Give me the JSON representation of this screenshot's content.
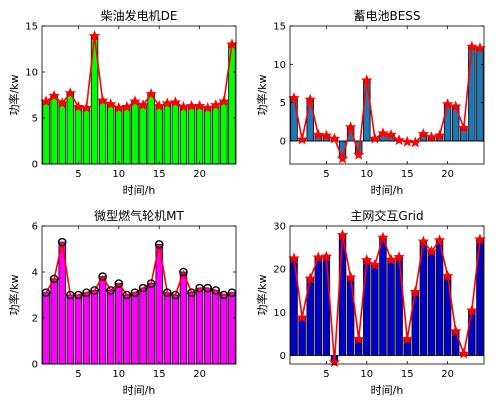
{
  "colors": {
    "series_line": "#ff0000",
    "bar_edge": "#000000"
  },
  "chart_data": [
    {
      "type": "bar",
      "title": "柴油发电机DE",
      "xlabel": "时间/h",
      "ylabel": "功率/kw",
      "xlim": [
        0.5,
        24.5
      ],
      "ylim": [
        0,
        15
      ],
      "xticks": [
        5,
        10,
        15,
        20
      ],
      "yticks": [
        0,
        5,
        10,
        15
      ],
      "bar_color": "#00ff00",
      "marker": "star",
      "x": [
        1,
        2,
        3,
        4,
        5,
        6,
        7,
        8,
        9,
        10,
        11,
        12,
        13,
        14,
        15,
        16,
        17,
        18,
        19,
        20,
        21,
        22,
        23,
        24
      ],
      "values": [
        6.8,
        7.4,
        6.6,
        7.7,
        6.2,
        6.1,
        13.9,
        6.9,
        6.5,
        6.1,
        6.2,
        6.8,
        6.4,
        7.6,
        6.3,
        6.6,
        6.7,
        6.2,
        6.3,
        6.3,
        6.1,
        6.4,
        6.8,
        13.0
      ]
    },
    {
      "type": "bar",
      "title": "蓄电池BESS",
      "xlabel": "时间/h",
      "ylabel": "功率/kw",
      "xlim": [
        0.5,
        24.5
      ],
      "ylim": [
        -3,
        15
      ],
      "xticks": [
        5,
        10,
        15,
        20
      ],
      "yticks": [
        0,
        5,
        10,
        15
      ],
      "bar_color": "#1f77b4",
      "marker": "star",
      "x": [
        1,
        2,
        3,
        4,
        5,
        6,
        7,
        8,
        9,
        10,
        11,
        12,
        13,
        14,
        15,
        16,
        17,
        18,
        19,
        20,
        21,
        22,
        23,
        24
      ],
      "values": [
        5.6,
        0.2,
        5.4,
        0.8,
        0.7,
        0.3,
        -2.3,
        1.8,
        -1.8,
        7.9,
        0.3,
        1.0,
        0.8,
        0.1,
        -0.1,
        -0.2,
        0.9,
        0.5,
        0.7,
        4.8,
        4.5,
        1.7,
        12.3,
        12.1
      ]
    },
    {
      "type": "bar",
      "title": "微型燃气轮机MT",
      "xlabel": "时间/h",
      "ylabel": "功率/kw",
      "xlim": [
        0.5,
        24.5
      ],
      "ylim": [
        0,
        6
      ],
      "xticks": [
        5,
        10,
        15,
        20
      ],
      "yticks": [
        0,
        2,
        4,
        6
      ],
      "bar_color": "#ff00ff",
      "marker": "circle",
      "x": [
        1,
        2,
        3,
        4,
        5,
        6,
        7,
        8,
        9,
        10,
        11,
        12,
        13,
        14,
        15,
        16,
        17,
        18,
        19,
        20,
        21,
        22,
        23,
        24
      ],
      "values": [
        3.1,
        3.7,
        5.3,
        3.0,
        3.0,
        3.1,
        3.2,
        3.8,
        3.2,
        3.5,
        3.0,
        3.1,
        3.3,
        3.5,
        5.2,
        3.1,
        3.0,
        4.0,
        3.1,
        3.3,
        3.3,
        3.2,
        3.0,
        3.1
      ]
    },
    {
      "type": "bar",
      "title": "主网交互Grid",
      "xlabel": "时间/h",
      "ylabel": "功率/kw",
      "xlim": [
        0.5,
        24.5
      ],
      "ylim": [
        -2,
        30
      ],
      "xticks": [
        5,
        10,
        15,
        20
      ],
      "yticks": [
        0,
        10,
        20,
        30
      ],
      "bar_color": "#0000cd",
      "marker": "star",
      "x": [
        1,
        2,
        3,
        4,
        5,
        6,
        7,
        8,
        9,
        10,
        11,
        12,
        13,
        14,
        15,
        16,
        17,
        18,
        19,
        20,
        21,
        22,
        23,
        24
      ],
      "values": [
        22.5,
        8.8,
        17.8,
        22.7,
        22.9,
        -1.6,
        27.9,
        18.1,
        3.8,
        22.1,
        21.0,
        27.3,
        22.2,
        22.8,
        3.8,
        14.7,
        26.4,
        24.1,
        26.7,
        18.4,
        5.6,
        0.4,
        10.4,
        26.9
      ]
    }
  ]
}
